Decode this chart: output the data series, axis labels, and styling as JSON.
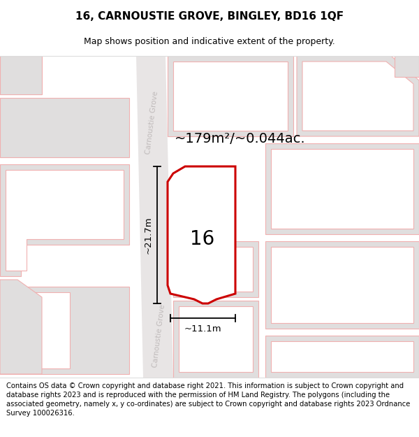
{
  "title": "16, CARNOUSTIE GROVE, BINGLEY, BD16 1QF",
  "subtitle": "Map shows position and indicative extent of the property.",
  "area_label": "~179m²/~0.044ac.",
  "height_label": "~21.7m",
  "width_label": "~11.1m",
  "number_label": "16",
  "footer": "Contains OS data © Crown copyright and database right 2021. This information is subject to Crown copyright and database rights 2023 and is reproduced with the permission of HM Land Registry. The polygons (including the associated geometry, namely x, y co-ordinates) are subject to Crown copyright and database rights 2023 Ordnance Survey 100026316.",
  "bg_color": "#f2f0f0",
  "map_bg": "#ffffff",
  "road_fill": "#e8e5e5",
  "building_fill": "#e0dede",
  "building_edge": "#f0b0b0",
  "plot_color": "#cc0000",
  "road_label_color": "#c0bbbb",
  "title_fontsize": 11,
  "subtitle_fontsize": 9,
  "footer_fontsize": 7.2,
  "area_fontsize": 14,
  "dim_fontsize": 9.5,
  "num_fontsize": 20
}
